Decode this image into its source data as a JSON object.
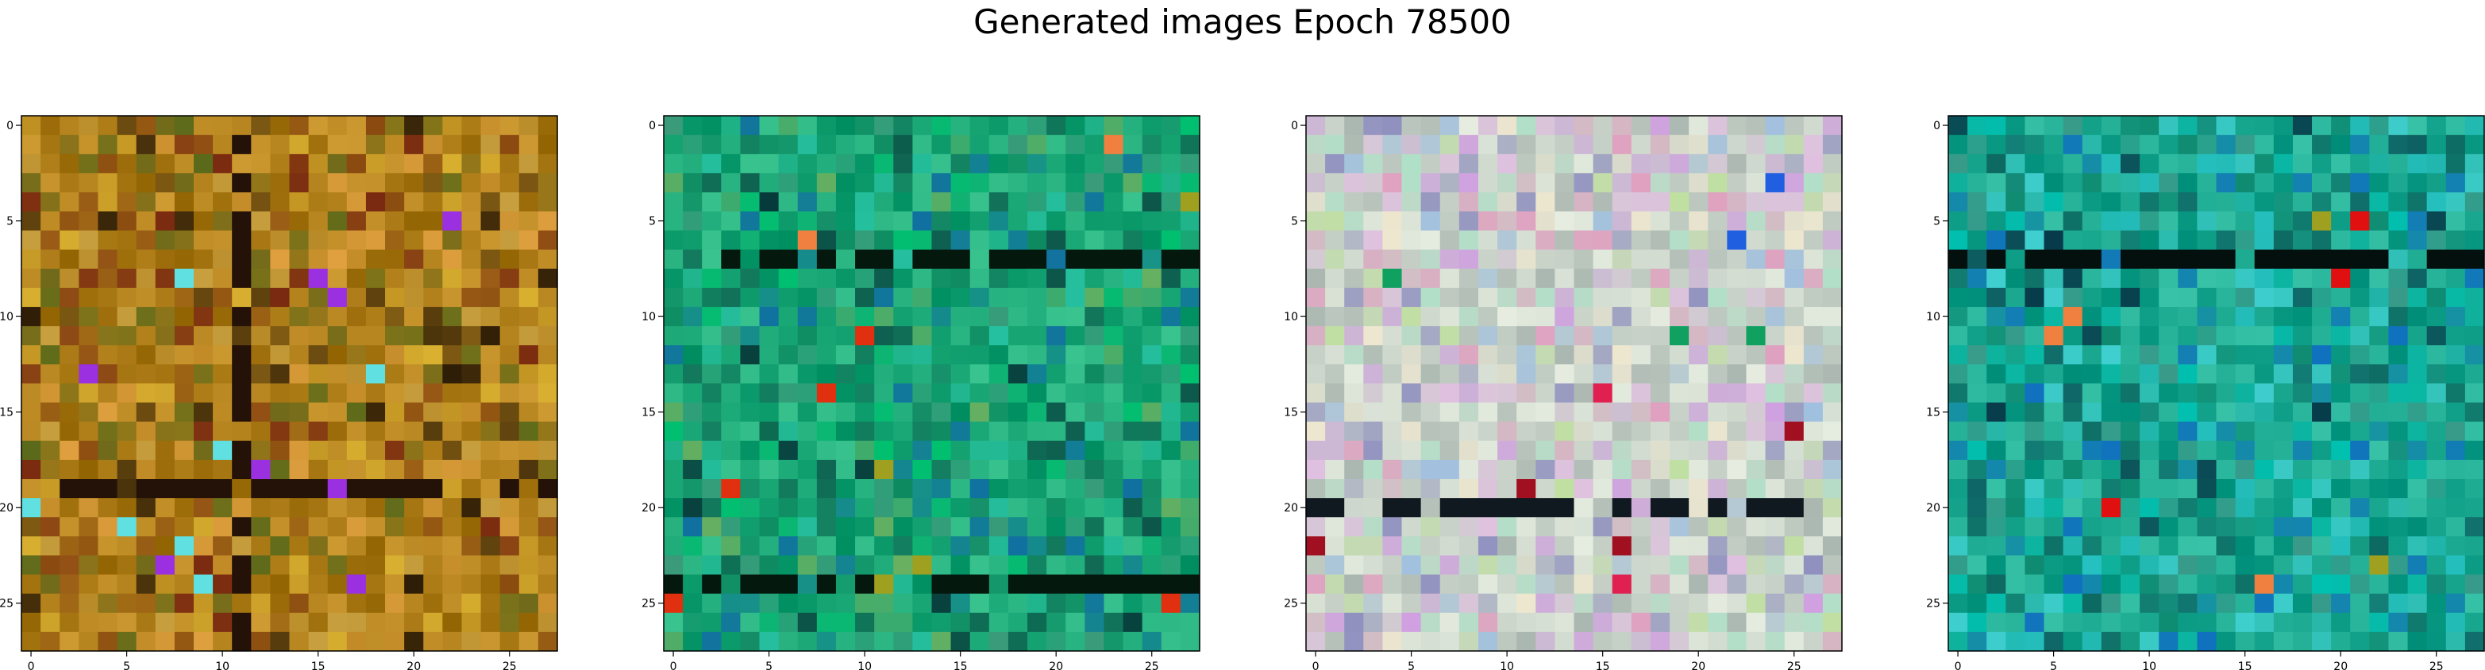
{
  "figure": {
    "title": "Generated images Epoch 78500"
  },
  "chart_data": [
    {
      "type": "heatmap",
      "rows": 28,
      "cols": 28,
      "xlim": [
        -0.5,
        27.5
      ],
      "ylim": [
        27.5,
        -0.5
      ],
      "xticks": [
        "0",
        "5",
        "10",
        "15",
        "20",
        "25"
      ],
      "yticks": [
        "0",
        "5",
        "10",
        "15",
        "20",
        "25"
      ],
      "base_color": "#b07f1a",
      "accent_colors": [
        "#d9b030",
        "#8a4a10",
        "#c8a040",
        "#6f6a1a",
        "#2a1a06",
        "#e0a040",
        "#7a2a10",
        "#5a6a1a"
      ],
      "dark_line_color": "#241208",
      "line_column": 11,
      "line_rows": [
        19
      ],
      "bright_pixels": [
        "#9a30e0",
        "#60e0e0"
      ]
    },
    {
      "type": "heatmap",
      "rows": 28,
      "cols": 28,
      "xlim": [
        -0.5,
        27.5
      ],
      "ylim": [
        27.5,
        -0.5
      ],
      "xticks": [
        "0",
        "5",
        "10",
        "15",
        "20",
        "25"
      ],
      "yticks": [
        "0",
        "5",
        "10",
        "15",
        "20",
        "25"
      ],
      "base_color": "#1ba877",
      "accent_colors": [
        "#00c070",
        "#0d6a52",
        "#25c0a0",
        "#0e8a60",
        "#1070a0",
        "#3a9a7a",
        "#6ab060",
        "#073a3a"
      ],
      "dark_line_color": "#04180e",
      "line_rows": [
        7,
        24
      ],
      "bright_pixels": [
        "#e03010",
        "#f08040",
        "#a0a020"
      ]
    },
    {
      "type": "heatmap",
      "rows": 28,
      "cols": 28,
      "xlim": [
        -0.5,
        27.5
      ],
      "ylim": [
        27.5,
        -0.5
      ],
      "xticks": [
        "0",
        "5",
        "10",
        "15",
        "20",
        "25"
      ],
      "yticks": [
        "0",
        "5",
        "10",
        "15",
        "20",
        "25"
      ],
      "base_color": "#c8d2c8",
      "accent_colors": [
        "#e0c0e0",
        "#b0e0c8",
        "#d0a0e0",
        "#a0c0e0",
        "#f0e8d0",
        "#e0a0c0",
        "#c0e0a0",
        "#9090c0"
      ],
      "dark_line_color": "#101820",
      "line_rows": [
        20
      ],
      "bright_pixels": [
        "#e02050",
        "#2060e0",
        "#10a060",
        "#a01020"
      ]
    },
    {
      "type": "heatmap",
      "rows": 28,
      "cols": 28,
      "xlim": [
        -0.5,
        27.5
      ],
      "ylim": [
        27.5,
        -0.5
      ],
      "xticks": [
        "0",
        "5",
        "10",
        "15",
        "20",
        "25"
      ],
      "yticks": [
        "0",
        "5",
        "10",
        "15",
        "20",
        "25"
      ],
      "base_color": "#1aa890",
      "accent_colors": [
        "#00c0b0",
        "#0d6a62",
        "#25c0c0",
        "#0e8a70",
        "#1070c0",
        "#3a9a8a",
        "#40d0d0",
        "#073a4a"
      ],
      "dark_line_color": "#04100e",
      "line_rows": [
        7
      ],
      "bright_pixels": [
        "#e01010",
        "#f08040",
        "#a0a020"
      ]
    }
  ]
}
